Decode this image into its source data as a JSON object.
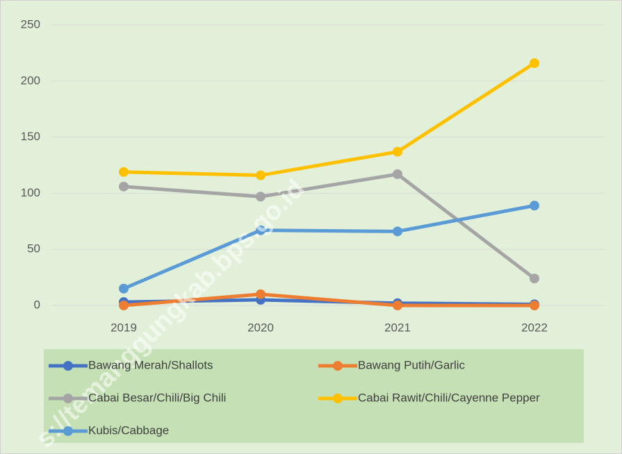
{
  "chart_data": {
    "type": "line",
    "x": [
      "2019",
      "2020",
      "2021",
      "2022"
    ],
    "series": [
      {
        "name": "Bawang Merah/Shallots",
        "color": "#4472c4",
        "values": [
          3,
          5,
          2,
          1
        ]
      },
      {
        "name": "Bawang Putih/Garlic",
        "color": "#ed7d31",
        "values": [
          0,
          10,
          0,
          0
        ]
      },
      {
        "name": "Cabai Besar/Chili/Big Chili",
        "color": "#a5a5a5",
        "values": [
          106,
          97,
          117,
          24
        ]
      },
      {
        "name": "Cabai Rawit/Chili/Cayenne Pepper",
        "color": "#ffc000",
        "values": [
          119,
          116,
          137,
          216
        ]
      },
      {
        "name": "Kubis/Cabbage",
        "color": "#5b9bd5",
        "values": [
          15,
          67,
          66,
          89
        ]
      }
    ],
    "ylim": [
      0,
      250
    ],
    "yticks": [
      0,
      50,
      100,
      150,
      200,
      250
    ],
    "grid": true,
    "legend": "bottom",
    "watermark": "s://temanggungkab.bps.go.id"
  }
}
